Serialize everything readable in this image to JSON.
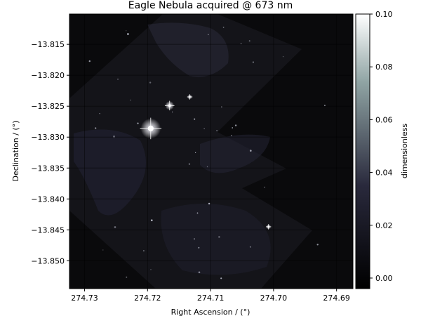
{
  "chart_data": {
    "type": "heatmap",
    "title": "Eagle Nebula acquired @ 673 nm",
    "xlabel": "Right Ascension / (°)",
    "ylabel": "Declination / (°)",
    "colorbar_label": "dimensionless",
    "colormap": "bone",
    "grid": true,
    "x_axis": {
      "ticks": [
        274.73,
        274.72,
        274.71,
        274.7,
        274.69
      ],
      "tick_labels": [
        "274.73",
        "274.72",
        "274.71",
        "274.70",
        "274.69"
      ],
      "range": [
        274.7324,
        274.6874
      ],
      "direction": "decreasing to the right"
    },
    "y_axis": {
      "ticks": [
        -13.815,
        -13.82,
        -13.825,
        -13.83,
        -13.835,
        -13.84,
        -13.845,
        -13.85
      ],
      "tick_labels": [
        "−13.815",
        "−13.820",
        "−13.825",
        "−13.830",
        "−13.835",
        "−13.840",
        "−13.845",
        "−13.850"
      ],
      "range": [
        -13.8545,
        -13.8101
      ]
    },
    "colorbar": {
      "range": [
        -0.004,
        0.1
      ],
      "ticks": [
        0.1,
        0.08,
        0.06,
        0.04,
        0.02,
        0.0
      ],
      "tick_labels": [
        "0.10",
        "0.08",
        "0.06",
        "0.04",
        "0.02",
        "0.00"
      ]
    },
    "bright_stars": [
      {
        "ra": 274.7195,
        "dec": -13.8286,
        "brightness": "high"
      },
      {
        "ra": 274.7165,
        "dec": -13.8249,
        "brightness": "medium"
      },
      {
        "ra": 274.7133,
        "dec": -13.8235,
        "brightness": "low"
      },
      {
        "ra": 274.7008,
        "dec": -13.8445,
        "brightness": "low"
      }
    ]
  }
}
